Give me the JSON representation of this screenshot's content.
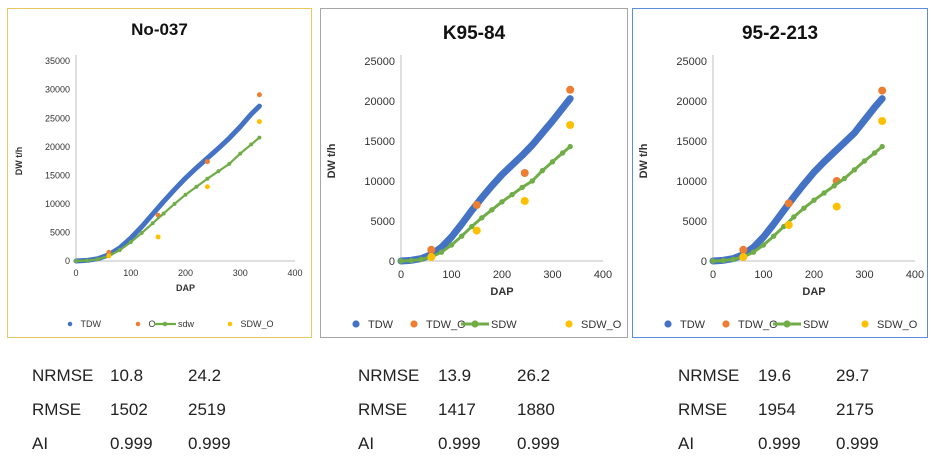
{
  "chart_data": [
    {
      "type": "scatter",
      "title": "No-037",
      "xlabel": "DAP",
      "ylabel": "DW t/h",
      "xlim": [
        0,
        400
      ],
      "ylim": [
        0,
        35000
      ],
      "xticks": [
        0,
        100,
        200,
        300,
        400
      ],
      "yticks": [
        0,
        5000,
        10000,
        15000,
        20000,
        25000,
        30000,
        35000
      ],
      "grid": false,
      "legend_position": "bottom",
      "border_color": "#e8c860",
      "series": [
        {
          "name": "TDW",
          "kind": "thick_line",
          "color": "#4472c4",
          "x": [
            0,
            20,
            40,
            60,
            80,
            100,
            120,
            140,
            160,
            180,
            200,
            220,
            240,
            260,
            280,
            300,
            320,
            335
          ],
          "y": [
            0,
            100,
            400,
            1100,
            2300,
            4000,
            6000,
            8200,
            10400,
            12500,
            14500,
            16300,
            18000,
            19700,
            21500,
            23500,
            25700,
            27100
          ]
        },
        {
          "name": "O",
          "kind": "points",
          "color": "#ed7d31",
          "x": [
            60,
            150,
            240,
            335
          ],
          "y": [
            1500,
            8000,
            17400,
            29100
          ]
        },
        {
          "name": "sdw",
          "kind": "line",
          "color": "#70ad47",
          "x": [
            0,
            20,
            40,
            60,
            80,
            100,
            120,
            140,
            160,
            180,
            200,
            220,
            240,
            260,
            280,
            300,
            320,
            335
          ],
          "y": [
            0,
            60,
            300,
            900,
            1900,
            3300,
            4900,
            6600,
            8300,
            10000,
            11600,
            13000,
            14400,
            15700,
            17000,
            18800,
            20400,
            21600
          ]
        },
        {
          "name": "SDW_O",
          "kind": "points",
          "color": "#ffc000",
          "x": [
            60,
            150,
            240,
            335
          ],
          "y": [
            900,
            4200,
            13000,
            24400
          ]
        }
      ]
    },
    {
      "type": "scatter",
      "title": "K95-84",
      "xlabel": "DAP",
      "ylabel": "DW t/h",
      "xlim": [
        0,
        400
      ],
      "ylim": [
        0,
        25000
      ],
      "xticks": [
        0,
        100,
        200,
        300,
        400
      ],
      "yticks": [
        0,
        5000,
        10000,
        15000,
        20000,
        25000
      ],
      "grid": false,
      "legend_position": "bottom",
      "border_color": "#a6a6a6",
      "series": [
        {
          "name": "TDW",
          "kind": "thick_line",
          "color": "#4472c4",
          "x": [
            0,
            20,
            40,
            60,
            80,
            100,
            120,
            140,
            160,
            180,
            200,
            220,
            240,
            260,
            280,
            300,
            320,
            335
          ],
          "y": [
            0,
            80,
            300,
            800,
            1700,
            3000,
            4600,
            6300,
            7900,
            9400,
            10800,
            12000,
            13200,
            14500,
            16000,
            17500,
            19100,
            20300
          ]
        },
        {
          "name": "TDW_O",
          "kind": "points",
          "color": "#ed7d31",
          "x": [
            60,
            150,
            245,
            335
          ],
          "y": [
            1400,
            7000,
            11000,
            21400
          ]
        },
        {
          "name": "SDW",
          "kind": "line",
          "color": "#70ad47",
          "x": [
            0,
            20,
            40,
            60,
            80,
            100,
            120,
            140,
            160,
            180,
            200,
            220,
            240,
            260,
            280,
            300,
            320,
            335
          ],
          "y": [
            0,
            50,
            200,
            500,
            1100,
            2000,
            3100,
            4300,
            5400,
            6400,
            7400,
            8300,
            9200,
            10000,
            11300,
            12400,
            13500,
            14300
          ]
        },
        {
          "name": "SDW_O",
          "kind": "points",
          "color": "#ffc000",
          "x": [
            60,
            150,
            245,
            335
          ],
          "y": [
            500,
            3800,
            7500,
            17000
          ]
        }
      ]
    },
    {
      "type": "scatter",
      "title": "95-2-213",
      "xlabel": "DAP",
      "ylabel": "DW t/h",
      "xlim": [
        0,
        400
      ],
      "ylim": [
        0,
        25000
      ],
      "xticks": [
        0,
        100,
        200,
        300,
        400
      ],
      "yticks": [
        0,
        5000,
        10000,
        15000,
        20000,
        25000
      ],
      "grid": false,
      "legend_position": "bottom",
      "border_color": "#5b8dd9",
      "series": [
        {
          "name": "TDW",
          "kind": "thick_line",
          "color": "#4472c4",
          "x": [
            0,
            20,
            40,
            60,
            80,
            100,
            120,
            140,
            160,
            180,
            200,
            220,
            240,
            260,
            280,
            300,
            320,
            335
          ],
          "y": [
            0,
            80,
            300,
            800,
            1700,
            3000,
            4600,
            6300,
            8000,
            9600,
            11100,
            12400,
            13600,
            14800,
            16000,
            17600,
            19200,
            20300
          ]
        },
        {
          "name": "TDW_O",
          "kind": "points",
          "color": "#ed7d31",
          "x": [
            60,
            150,
            245,
            335
          ],
          "y": [
            1400,
            7200,
            10000,
            21300
          ]
        },
        {
          "name": "SDW",
          "kind": "line",
          "color": "#70ad47",
          "x": [
            0,
            20,
            40,
            60,
            80,
            100,
            120,
            140,
            160,
            180,
            200,
            220,
            240,
            260,
            280,
            300,
            320,
            335
          ],
          "y": [
            0,
            50,
            200,
            500,
            1100,
            2000,
            3100,
            4300,
            5500,
            6600,
            7600,
            8500,
            9400,
            10300,
            11400,
            12500,
            13500,
            14300
          ]
        },
        {
          "name": "SDW_O",
          "kind": "points",
          "color": "#ffc000",
          "x": [
            60,
            150,
            245,
            335
          ],
          "y": [
            500,
            4500,
            6800,
            17500
          ]
        }
      ]
    }
  ],
  "stats": [
    {
      "rows": [
        {
          "label": "NRMSE",
          "v1": "10.8",
          "v2": "24.2"
        },
        {
          "label": "RMSE",
          "v1": "1502",
          "v2": "2519"
        },
        {
          "label": "AI",
          "v1": "0.999",
          "v2": "0.999"
        }
      ]
    },
    {
      "rows": [
        {
          "label": "NRMSE",
          "v1": "13.9",
          "v2": "26.2"
        },
        {
          "label": "RMSE",
          "v1": "1417",
          "v2": "1880"
        },
        {
          "label": "AI",
          "v1": "0.999",
          "v2": "0.999"
        }
      ]
    },
    {
      "rows": [
        {
          "label": "NRMSE",
          "v1": "19.6",
          "v2": "29.7"
        },
        {
          "label": "RMSE",
          "v1": "1954",
          "v2": "2175"
        },
        {
          "label": "AI",
          "v1": "0.999",
          "v2": "0.999"
        }
      ]
    }
  ]
}
